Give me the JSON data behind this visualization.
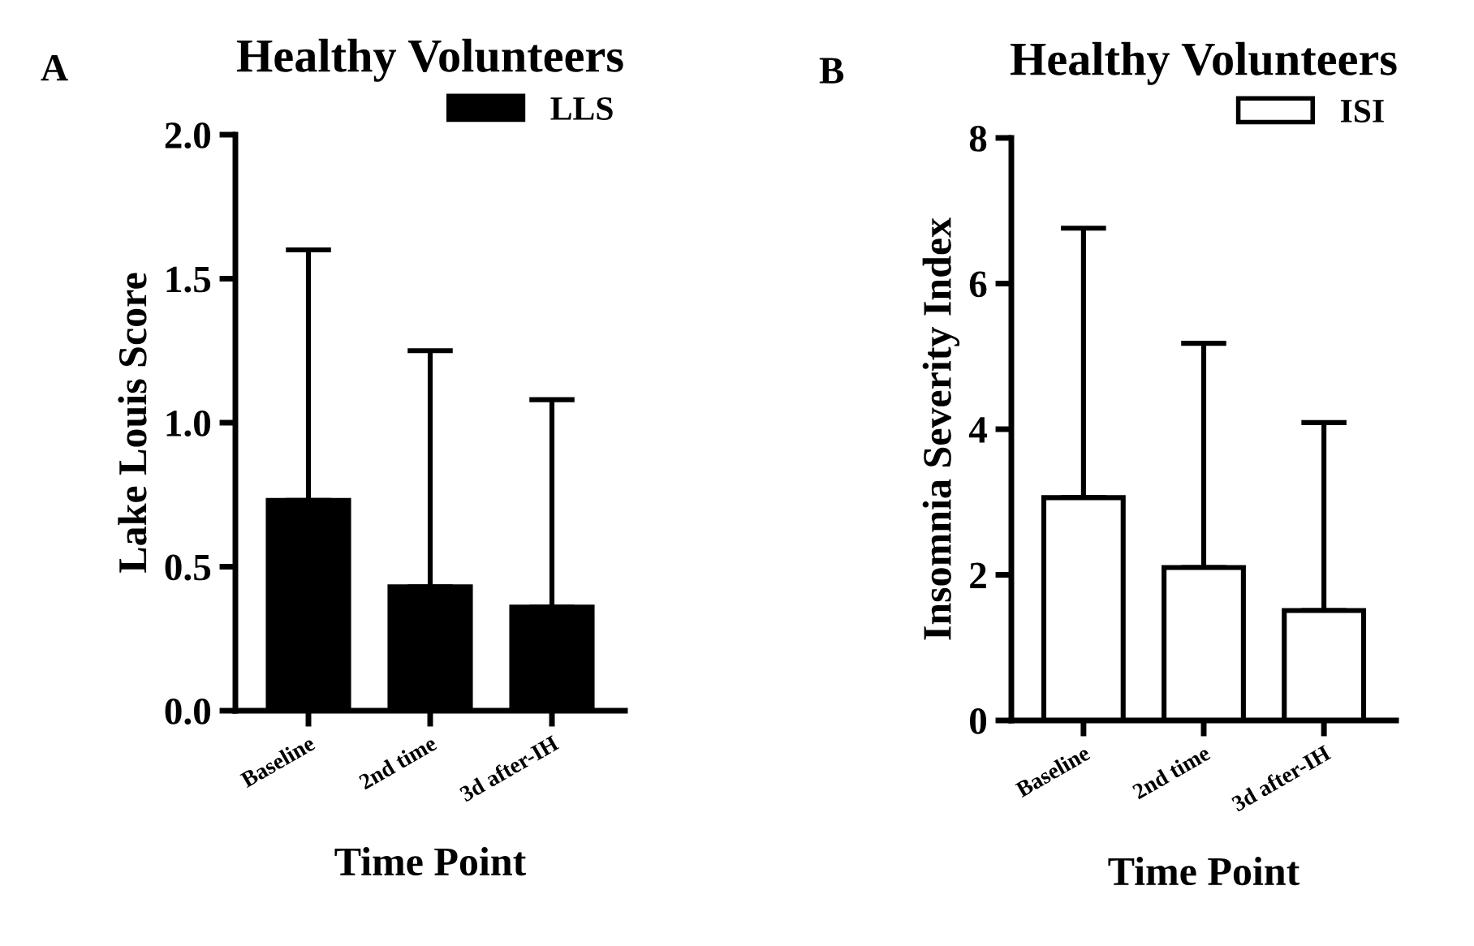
{
  "chart_data": [
    {
      "type": "bar",
      "title": "Healthy Volunteers",
      "xlabel": "Time Point",
      "ylabel": "Lake Louis Score",
      "annotations": [
        "A"
      ],
      "categories": [
        "Baseline",
        "2nd time",
        "3d after-IH"
      ],
      "series": [
        {
          "name": "LLS",
          "color": "#000000",
          "values": [
            0.73,
            0.43,
            0.36
          ],
          "errors": [
            [
              0.73,
              1.6
            ],
            [
              0.43,
              1.25
            ],
            [
              0.36,
              1.08
            ]
          ]
        }
      ],
      "ylim": [
        0,
        2
      ],
      "yticks": [
        {
          "value": 0,
          "label": "0.0"
        },
        0.5,
        {
          "value": 1,
          "label": "1.0"
        },
        1.5,
        {
          "value": 2,
          "label": "2.0"
        }
      ],
      "grid": false,
      "legend": "top right"
    },
    {
      "type": "bar",
      "title": "Healthy Volunteers",
      "xlabel": "Time Point",
      "ylabel": "Insomnia Severity Index",
      "annotations": [
        "B"
      ],
      "categories": [
        "Baseline",
        "2nd time",
        "3d after-IH"
      ],
      "series": [
        {
          "name": "ISI",
          "color": "#ffffff",
          "values": [
            3.06,
            2.1,
            1.51
          ],
          "errors": [
            [
              3.06,
              6.76
            ],
            [
              2.1,
              5.18
            ],
            [
              1.51,
              4.09
            ]
          ]
        }
      ],
      "ylim": [
        0,
        8
      ],
      "yticks": [
        0,
        2,
        4,
        6,
        8
      ],
      "grid": false,
      "legend": "top right"
    }
  ]
}
